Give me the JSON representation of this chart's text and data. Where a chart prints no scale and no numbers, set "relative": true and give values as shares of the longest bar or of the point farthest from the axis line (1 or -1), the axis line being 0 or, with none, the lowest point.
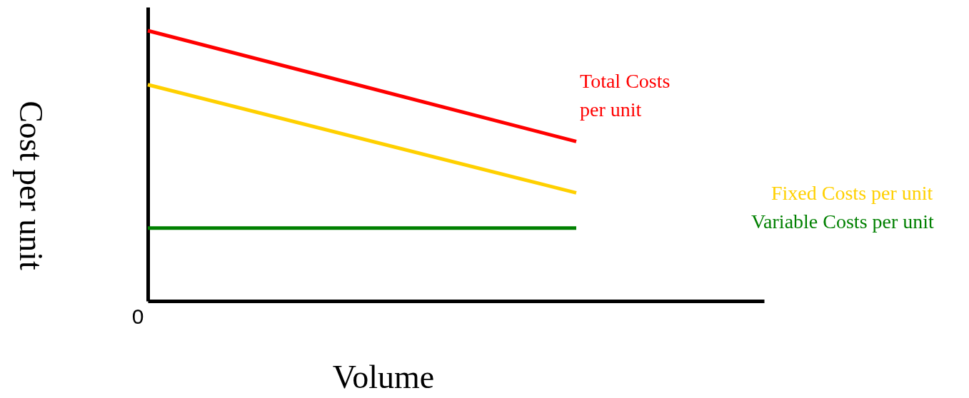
{
  "chart_data": {
    "type": "line",
    "relative": true,
    "xlabel": "Volume",
    "ylabel": "Cost per unit",
    "categories": [
      null,
      null
    ],
    "series": [
      {
        "name": "Total Costs per unit",
        "color": "#ff0000",
        "values": [
          1,
          0.59
        ]
      },
      {
        "name": "Fixed Costs per unit",
        "color": "#ffd000",
        "values": [
          0.8,
          0.4
        ]
      },
      {
        "name": "Variable Costs per unit",
        "color": "#008000",
        "values": [
          0.27,
          0.27
        ]
      }
    ],
    "annotations": [
      "0"
    ],
    "legend": false,
    "grid": false,
    "marker": "none",
    "line_style": "solid"
  }
}
